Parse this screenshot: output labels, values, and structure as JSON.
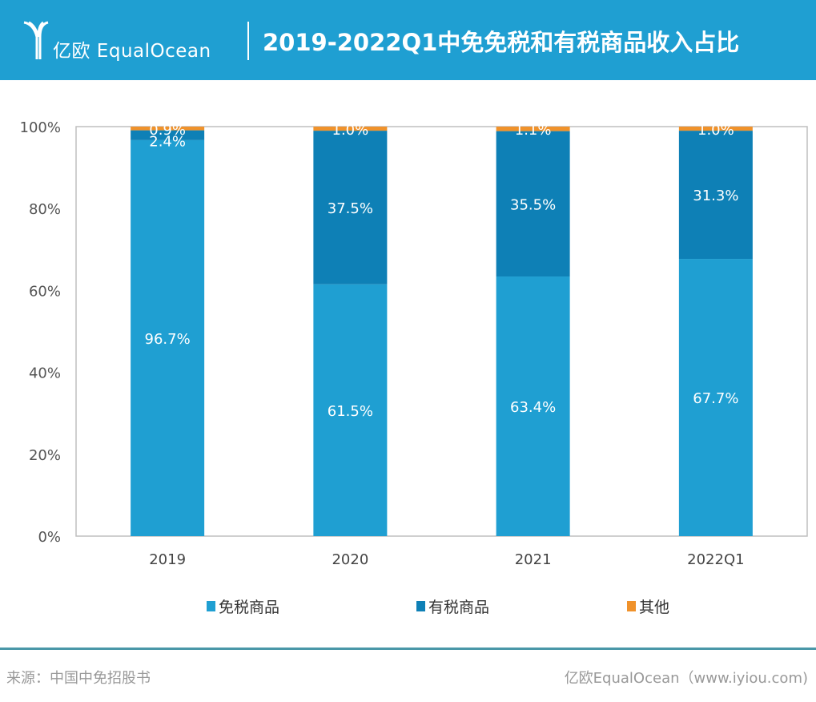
{
  "header": {
    "logo_text": "亿欧 EqualOcean",
    "title": "2019-2022Q1中免免税和有税商品收入占比"
  },
  "chart_data": {
    "type": "bar",
    "stacked": true,
    "title": "2019-2022Q1中免免税和有税商品收入占比",
    "categories": [
      "2019",
      "2020",
      "2021",
      "2022Q1"
    ],
    "series": [
      {
        "name": "免税商品",
        "values": [
          96.7,
          61.5,
          63.4,
          67.7
        ],
        "labels": [
          "96.7%",
          "61.5%",
          "63.4%",
          "67.7%"
        ],
        "color": "#1f9fd2"
      },
      {
        "name": "有税商品",
        "values": [
          2.4,
          37.5,
          35.5,
          31.3
        ],
        "labels": [
          "2.4%",
          "37.5%",
          "35.5%",
          "31.3%"
        ],
        "color": "#0e80b6"
      },
      {
        "name": "其他",
        "values": [
          0.9,
          1.0,
          1.1,
          1.0
        ],
        "labels": [
          "0.9%",
          "1.0%",
          "1.1%",
          "1.0%"
        ],
        "color": "#f0922b"
      }
    ],
    "ylim": [
      0,
      100
    ],
    "yticks": [
      "0%",
      "20%",
      "40%",
      "60%",
      "80%",
      "100%"
    ],
    "legend": "bottom",
    "grid": false
  },
  "footer": {
    "source": "来源：中国中免招股书",
    "brand": "亿欧EqualOcean（www.iyiou.com)"
  }
}
